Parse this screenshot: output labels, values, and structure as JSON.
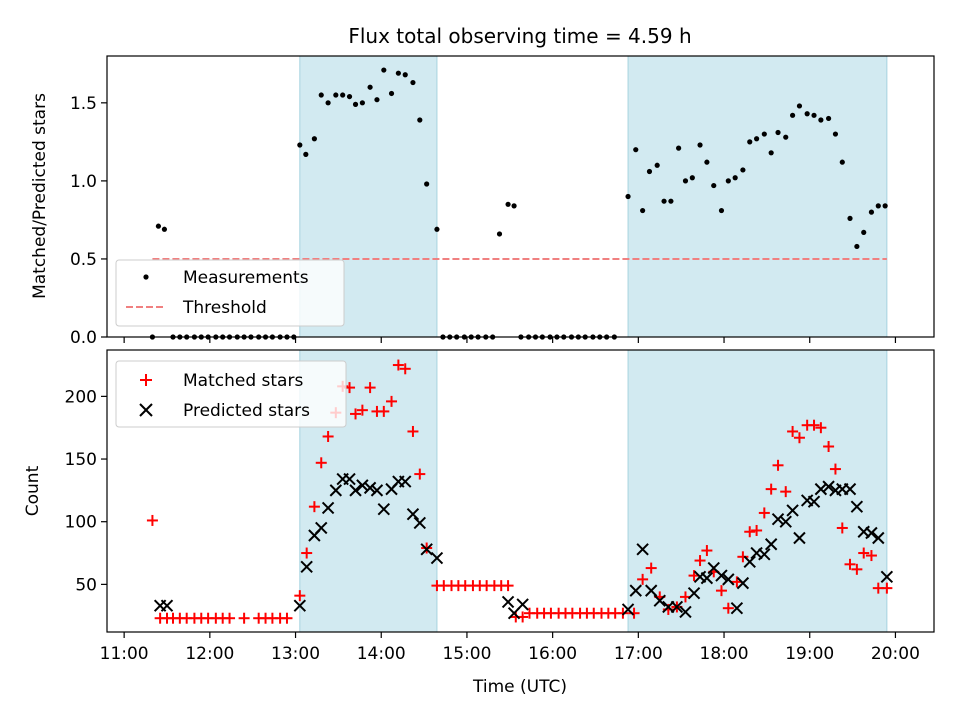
{
  "chart_data": [
    {
      "type": "scatter",
      "title": "Flux total observing time = 4.59 h",
      "xlabel": "",
      "ylabel": "Matched/Predicted stars",
      "xlim_hours": [
        10.8,
        20.45
      ],
      "ylim": [
        0,
        1.8
      ],
      "yticks": [
        "0.0",
        "0.5",
        "1.0",
        "1.5"
      ],
      "grid": false,
      "legend_placement": "lower-left",
      "legend": [
        "Measurements",
        "Threshold"
      ],
      "threshold": {
        "value": 0.5,
        "x_start": 11.33,
        "x_end": 19.9,
        "color": "#f08080"
      },
      "shaded_regions": [
        {
          "start": 13.05,
          "end": 14.65
        },
        {
          "start": 16.88,
          "end": 19.9
        }
      ],
      "series": [
        {
          "name": "Measurements",
          "marker": "dot",
          "color": "#000000",
          "x": [
            11.33,
            11.4,
            11.47,
            11.57,
            11.65,
            11.73,
            11.82,
            11.9,
            11.98,
            12.07,
            12.15,
            12.23,
            12.32,
            12.4,
            12.48,
            12.57,
            12.65,
            12.73,
            12.82,
            12.9,
            12.98,
            13.05,
            13.12,
            13.22,
            13.3,
            13.38,
            13.47,
            13.55,
            13.63,
            13.7,
            13.78,
            13.87,
            13.95,
            14.03,
            14.12,
            14.2,
            14.28,
            14.37,
            14.45,
            14.53,
            14.65,
            14.72,
            14.8,
            14.88,
            14.97,
            15.05,
            15.13,
            15.22,
            15.3,
            15.38,
            15.48,
            15.55,
            15.63,
            15.72,
            15.8,
            15.88,
            15.97,
            16.05,
            16.13,
            16.22,
            16.3,
            16.38,
            16.47,
            16.55,
            16.63,
            16.72,
            16.88,
            16.97,
            17.05,
            17.13,
            17.22,
            17.3,
            17.38,
            17.47,
            17.55,
            17.63,
            17.72,
            17.8,
            17.88,
            17.97,
            18.05,
            18.13,
            18.22,
            18.3,
            18.38,
            18.47,
            18.55,
            18.63,
            18.72,
            18.8,
            18.88,
            18.97,
            19.05,
            19.13,
            19.22,
            19.3,
            19.38,
            19.47,
            19.55,
            19.63,
            19.72,
            19.8,
            19.88
          ],
          "y": [
            0,
            0.71,
            0.69,
            0,
            0,
            0,
            0,
            0,
            0,
            0,
            0,
            0,
            0,
            0,
            0,
            0,
            0,
            0,
            0,
            0,
            0,
            1.23,
            1.17,
            1.27,
            1.55,
            1.5,
            1.55,
            1.55,
            1.54,
            1.49,
            1.5,
            1.6,
            1.52,
            1.71,
            1.56,
            1.69,
            1.68,
            1.63,
            1.39,
            0.98,
            0.69,
            0,
            0,
            0,
            0,
            0,
            0,
            0,
            0,
            0.66,
            0.85,
            0.84,
            0,
            0,
            0,
            0,
            0,
            0,
            0,
            0,
            0,
            0,
            0,
            0,
            0,
            0,
            0.9,
            1.2,
            0.81,
            1.06,
            1.1,
            0.87,
            0.87,
            1.21,
            1.0,
            1.02,
            1.23,
            1.12,
            0.97,
            0.81,
            1.0,
            1.02,
            1.07,
            1.25,
            1.27,
            1.3,
            1.18,
            1.31,
            1.28,
            1.42,
            1.48,
            1.43,
            1.42,
            1.39,
            1.4,
            1.3,
            1.12,
            0.76,
            0.58,
            0.67,
            0.8,
            0.84,
            0.84
          ]
        }
      ]
    },
    {
      "type": "scatter",
      "title": "",
      "xlabel": "Time (UTC)",
      "ylabel": "Count",
      "xlim_hours": [
        10.8,
        20.45
      ],
      "ylim": [
        12,
        237
      ],
      "yticks": [
        "50",
        "100",
        "150",
        "200"
      ],
      "xticks": [
        "11:00",
        "12:00",
        "13:00",
        "14:00",
        "15:00",
        "16:00",
        "17:00",
        "18:00",
        "19:00",
        "20:00"
      ],
      "grid": false,
      "legend_placement": "upper-left",
      "legend": [
        "Matched stars",
        "Predicted stars"
      ],
      "shaded_regions": [
        {
          "start": 13.05,
          "end": 14.65
        },
        {
          "start": 16.88,
          "end": 19.9
        }
      ],
      "series": [
        {
          "name": "Matched stars",
          "marker": "plus",
          "color": "#ff0000",
          "x": [
            11.33,
            11.42,
            11.5,
            11.57,
            11.65,
            11.73,
            11.82,
            11.9,
            11.98,
            12.07,
            12.15,
            12.23,
            12.4,
            12.57,
            12.65,
            12.73,
            12.82,
            12.9,
            13.05,
            13.13,
            13.22,
            13.3,
            13.38,
            13.47,
            13.55,
            13.63,
            13.7,
            13.78,
            13.87,
            13.95,
            14.03,
            14.12,
            14.2,
            14.28,
            14.37,
            14.45,
            14.53,
            14.65,
            14.73,
            14.82,
            14.9,
            14.98,
            15.07,
            15.15,
            15.23,
            15.32,
            15.4,
            15.48,
            15.57,
            15.65,
            15.73,
            15.82,
            15.9,
            15.98,
            16.07,
            16.15,
            16.23,
            16.32,
            16.4,
            16.48,
            16.57,
            16.65,
            16.73,
            16.82,
            16.95,
            17.05,
            17.15,
            17.25,
            17.35,
            17.45,
            17.55,
            17.65,
            17.72,
            17.8,
            17.88,
            17.97,
            18.05,
            18.15,
            18.22,
            18.3,
            18.38,
            18.47,
            18.55,
            18.63,
            18.72,
            18.8,
            18.88,
            18.97,
            19.05,
            19.13,
            19.22,
            19.3,
            19.38,
            19.47,
            19.55,
            19.63,
            19.72,
            19.8,
            19.9
          ],
          "y": [
            101,
            23,
            23,
            23,
            23,
            23,
            23,
            23,
            23,
            23,
            23,
            23,
            23,
            23,
            23,
            23,
            23,
            23,
            41,
            75,
            112,
            147,
            168,
            187,
            208,
            207,
            186,
            189,
            207,
            188,
            188,
            196,
            225,
            222,
            172,
            138,
            79,
            49,
            49,
            49,
            49,
            49,
            49,
            49,
            49,
            49,
            49,
            49,
            24,
            24,
            27,
            27,
            27,
            27,
            27,
            27,
            27,
            27,
            27,
            27,
            27,
            27,
            27,
            27,
            27,
            54,
            63,
            40,
            30,
            32,
            40,
            57,
            69,
            77,
            60,
            45,
            31,
            52,
            72,
            92,
            93,
            107,
            126,
            145,
            124,
            172,
            167,
            177,
            177,
            175,
            160,
            142,
            95,
            66,
            62,
            75,
            73,
            47,
            47
          ]
        },
        {
          "name": "Predicted stars",
          "marker": "x",
          "color": "#000000",
          "x": [
            11.42,
            11.5,
            13.05,
            13.13,
            13.22,
            13.3,
            13.38,
            13.47,
            13.55,
            13.63,
            13.7,
            13.78,
            13.87,
            13.95,
            14.03,
            14.12,
            14.2,
            14.28,
            14.37,
            14.45,
            14.53,
            14.65,
            15.48,
            15.55,
            15.65,
            16.88,
            16.97,
            17.05,
            17.15,
            17.25,
            17.35,
            17.45,
            17.55,
            17.65,
            17.72,
            17.8,
            17.88,
            17.97,
            18.05,
            18.15,
            18.22,
            18.3,
            18.38,
            18.47,
            18.55,
            18.63,
            18.72,
            18.8,
            18.88,
            18.97,
            19.05,
            19.13,
            19.22,
            19.3,
            19.38,
            19.47,
            19.55,
            19.63,
            19.72,
            19.8,
            19.9
          ],
          "y": [
            33,
            33,
            33,
            64,
            89,
            95,
            111,
            125,
            134,
            134,
            125,
            129,
            127,
            125,
            110,
            126,
            132,
            132,
            106,
            99,
            78,
            71,
            36,
            27,
            34,
            30,
            45,
            78,
            45,
            37,
            32,
            32,
            28,
            43,
            56,
            55,
            63,
            57,
            54,
            31,
            51,
            68,
            75,
            74,
            82,
            102,
            100,
            109,
            87,
            117,
            116,
            126,
            128,
            125,
            126,
            126,
            112,
            92,
            91,
            87,
            56
          ]
        }
      ]
    }
  ]
}
